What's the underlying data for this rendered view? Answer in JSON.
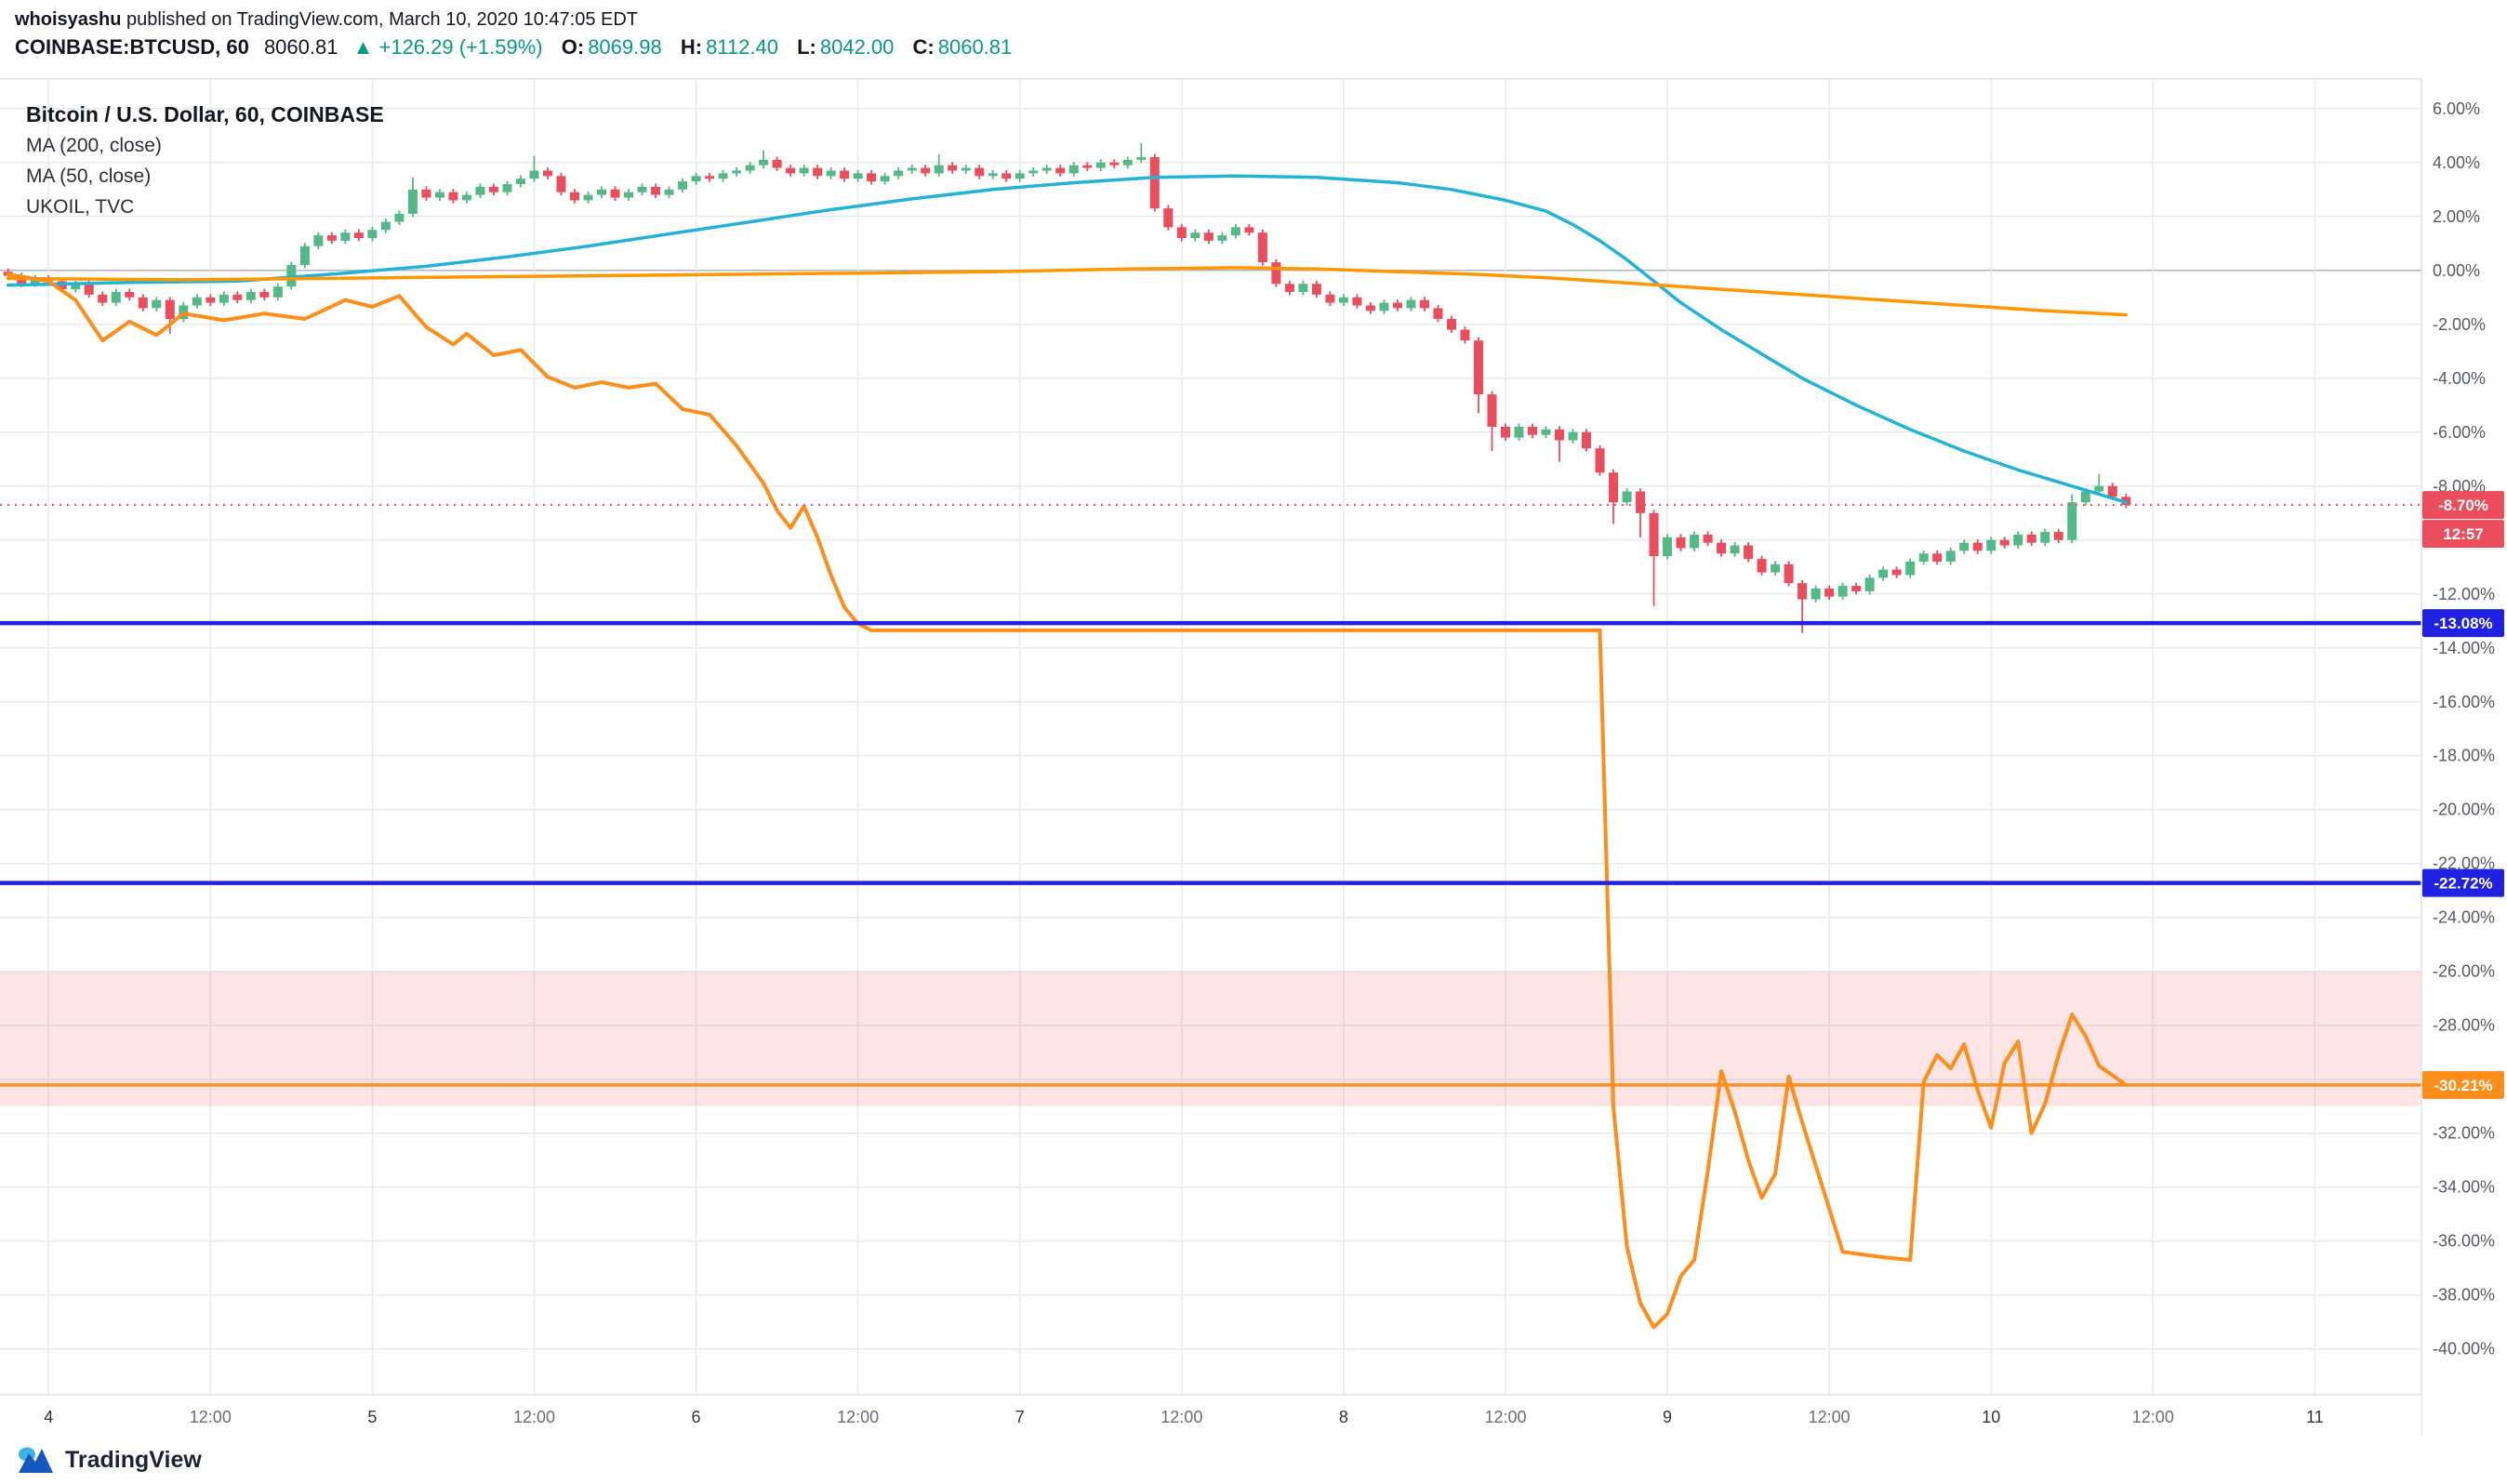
{
  "header": {
    "author": "whoisyashu",
    "published": " published on TradingView.com, March 10, 2020 10:47:05 EDT",
    "symbol": "COINBASE:BTCUSD, 60",
    "last": "8060.81",
    "change": "▲ +126.29 (+1.59%)",
    "o_label": "O:",
    "o_value": "8069.98",
    "h_label": "H:",
    "h_value": "8112.40",
    "l_label": "L:",
    "l_value": "8042.00",
    "c_label": "C:",
    "c_value": "8060.81"
  },
  "legend": {
    "title": "Bitcoin / U.S. Dollar, 60, COINBASE",
    "ma200": "MA (200, close)",
    "ma50": "MA (50, close)",
    "ukoil": "UKOIL, TVC"
  },
  "footer": {
    "brand": "TradingView"
  },
  "colors": {
    "up": "#53b987",
    "down": "#eb4d5c",
    "grid": "#e7eaee",
    "grid_zero": "#b2b6bd",
    "border": "#dfe2e8",
    "axis_text": "#555a64",
    "tick_day": "#30343c",
    "tick_time": "#686d78",
    "accent_green": "#089981",
    "blue": "#2021e2",
    "red": "#eb4d5c",
    "orange": "#ff8d1a"
  },
  "chart_data": {
    "type": "candlestick+line",
    "title": "Bitcoin / U.S. Dollar, 60, COINBASE (percent scale) with MA(200), MA(50) and UKOIL overlay",
    "x_unit": "hours since 2020-03-04 00:00",
    "xlim": [
      -3.6,
      175.9
    ],
    "ylim": [
      -41.7,
      7.131
    ],
    "y_ticks": [
      6,
      4,
      2,
      0,
      -2,
      -4,
      -6,
      -8,
      -10,
      -12,
      -14,
      -16,
      -18,
      -20,
      -22,
      -24,
      -26,
      -28,
      -30,
      -32,
      -34,
      -36,
      -38,
      -40
    ],
    "x_ticks": [
      [
        0,
        "4"
      ],
      [
        12,
        "12:00"
      ],
      [
        24,
        "5"
      ],
      [
        36,
        "12:00"
      ],
      [
        48,
        "6"
      ],
      [
        60,
        "12:00"
      ],
      [
        72,
        "7"
      ],
      [
        84,
        "12:00"
      ],
      [
        96,
        "8"
      ],
      [
        108,
        "12:00"
      ],
      [
        120,
        "9"
      ],
      [
        132,
        "12:00"
      ],
      [
        144,
        "10"
      ],
      [
        156,
        "12:00"
      ],
      [
        168,
        "11"
      ]
    ],
    "candles": {
      "t_start": -3,
      "wick_pad": 0.12,
      "closes": [
        -0.2,
        -0.5,
        -0.3,
        -0.4,
        -0.7,
        -0.5,
        -0.9,
        -1.2,
        -0.8,
        -1.0,
        -1.4,
        -1.1,
        -1.8,
        -1.3,
        -1.0,
        -1.2,
        -0.9,
        -1.1,
        -0.8,
        -1.0,
        -0.6,
        0.2,
        0.9,
        1.3,
        1.1,
        1.4,
        1.2,
        1.5,
        1.8,
        2.1,
        3.0,
        2.7,
        2.9,
        2.6,
        2.8,
        3.1,
        2.9,
        3.2,
        3.4,
        3.7,
        3.5,
        2.9,
        2.6,
        2.8,
        3.0,
        2.7,
        2.9,
        3.1,
        2.8,
        3.0,
        3.3,
        3.5,
        3.4,
        3.6,
        3.7,
        3.9,
        4.1,
        3.8,
        3.6,
        3.8,
        3.5,
        3.7,
        3.4,
        3.6,
        3.3,
        3.5,
        3.7,
        3.8,
        3.6,
        3.9,
        3.7,
        3.8,
        3.5,
        3.6,
        3.4,
        3.6,
        3.7,
        3.8,
        3.6,
        3.9,
        3.8,
        4.0,
        3.9,
        4.1,
        4.2,
        2.3,
        1.6,
        1.2,
        1.4,
        1.1,
        1.3,
        1.6,
        1.4,
        0.3,
        -0.5,
        -0.8,
        -0.5,
        -0.9,
        -1.2,
        -1.0,
        -1.3,
        -1.5,
        -1.2,
        -1.4,
        -1.1,
        -1.4,
        -1.8,
        -2.2,
        -2.6,
        -4.6,
        -5.8,
        -6.2,
        -5.8,
        -6.1,
        -5.9,
        -6.3,
        -6.0,
        -6.6,
        -7.5,
        -8.6,
        -8.2,
        -9.0,
        -10.6,
        -9.9,
        -10.3,
        -9.8,
        -10.1,
        -10.5,
        -10.2,
        -10.7,
        -11.2,
        -10.9,
        -11.6,
        -12.2,
        -11.8,
        -12.1,
        -11.7,
        -11.9,
        -11.4,
        -11.1,
        -11.3,
        -10.8,
        -10.5,
        -10.8,
        -10.4,
        -10.1,
        -10.4,
        -10.0,
        -10.2,
        -9.8,
        -10.1,
        -9.7,
        -10.0,
        -8.6,
        -8.2,
        -8.0,
        -8.4,
        -8.7
      ],
      "wick_overrides": {
        "12": {
          "l": -2.35
        },
        "30": {
          "h": 3.45
        },
        "39": {
          "h": 4.25
        },
        "56": {
          "h": 4.45
        },
        "69": {
          "h": 4.3
        },
        "84": {
          "h": 4.72
        },
        "109": {
          "l": -5.3
        },
        "110": {
          "l": -6.7
        },
        "115": {
          "l": -7.1
        },
        "119": {
          "l": -9.4
        },
        "121": {
          "l": -9.9
        },
        "122": {
          "l": -12.45
        },
        "133": {
          "l": -13.45
        },
        "153": {
          "h": -8.3
        },
        "155": {
          "h": -7.55
        }
      }
    },
    "series": [
      {
        "id": "ma200",
        "name": "MA (200, close)",
        "color": "#23b3d7",
        "width": 3.5,
        "points": [
          [
            -3,
            -0.55
          ],
          [
            6,
            -0.45
          ],
          [
            14,
            -0.4
          ],
          [
            22,
            -0.1
          ],
          [
            28,
            0.15
          ],
          [
            34,
            0.5
          ],
          [
            40,
            0.9
          ],
          [
            46,
            1.35
          ],
          [
            52,
            1.8
          ],
          [
            58,
            2.25
          ],
          [
            64,
            2.65
          ],
          [
            70,
            3.0
          ],
          [
            76,
            3.25
          ],
          [
            82,
            3.45
          ],
          [
            88,
            3.5
          ],
          [
            94,
            3.45
          ],
          [
            100,
            3.25
          ],
          [
            104,
            3.0
          ],
          [
            108,
            2.6
          ],
          [
            111,
            2.2
          ],
          [
            113,
            1.7
          ],
          [
            115,
            1.1
          ],
          [
            117,
            0.4
          ],
          [
            119,
            -0.4
          ],
          [
            121,
            -1.2
          ],
          [
            124,
            -2.2
          ],
          [
            127,
            -3.1
          ],
          [
            130,
            -4.0
          ],
          [
            134,
            -5.0
          ],
          [
            138,
            -5.9
          ],
          [
            142,
            -6.7
          ],
          [
            146,
            -7.4
          ],
          [
            150,
            -8.0
          ],
          [
            154,
            -8.6
          ]
        ]
      },
      {
        "id": "ma50",
        "name": "MA (50, close)",
        "color": "#ff9800",
        "width": 3.5,
        "points": [
          [
            -3,
            -0.3
          ],
          [
            10,
            -0.35
          ],
          [
            20,
            -0.3
          ],
          [
            30,
            -0.25
          ],
          [
            40,
            -0.2
          ],
          [
            50,
            -0.15
          ],
          [
            60,
            -0.1
          ],
          [
            70,
            -0.05
          ],
          [
            80,
            0.05
          ],
          [
            88,
            0.1
          ],
          [
            94,
            0.05
          ],
          [
            100,
            -0.05
          ],
          [
            106,
            -0.15
          ],
          [
            112,
            -0.3
          ],
          [
            118,
            -0.5
          ],
          [
            124,
            -0.7
          ],
          [
            130,
            -0.9
          ],
          [
            136,
            -1.1
          ],
          [
            142,
            -1.3
          ],
          [
            148,
            -1.5
          ],
          [
            154,
            -1.65
          ]
        ]
      },
      {
        "id": "ukoil",
        "name": "UKOIL, TVC",
        "color": "#ff8d1a",
        "width": 4,
        "points": [
          [
            -3,
            -0.15
          ],
          [
            0,
            -0.4
          ],
          [
            2,
            -1.1
          ],
          [
            4,
            -2.6
          ],
          [
            6,
            -1.9
          ],
          [
            8,
            -2.4
          ],
          [
            10,
            -1.6
          ],
          [
            13,
            -1.85
          ],
          [
            16,
            -1.6
          ],
          [
            19,
            -1.8
          ],
          [
            22,
            -1.1
          ],
          [
            24,
            -1.35
          ],
          [
            26,
            -0.95
          ],
          [
            28,
            -2.1
          ],
          [
            30,
            -2.75
          ],
          [
            31,
            -2.35
          ],
          [
            33,
            -3.15
          ],
          [
            35,
            -2.95
          ],
          [
            37,
            -3.95
          ],
          [
            39,
            -4.35
          ],
          [
            41,
            -4.15
          ],
          [
            43,
            -4.35
          ],
          [
            45,
            -4.2
          ],
          [
            47,
            -5.15
          ],
          [
            49,
            -5.35
          ],
          [
            51,
            -6.5
          ],
          [
            53,
            -7.9
          ],
          [
            54,
            -8.9
          ],
          [
            55,
            -9.55
          ],
          [
            56,
            -8.75
          ],
          [
            57,
            -9.9
          ],
          [
            58,
            -11.3
          ],
          [
            59,
            -12.5
          ],
          [
            60,
            -13.1
          ],
          [
            61,
            -13.35
          ],
          [
            115,
            -13.35
          ],
          [
            116,
            -31.0
          ],
          [
            117,
            -36.2
          ],
          [
            118,
            -38.3
          ],
          [
            119,
            -39.2
          ],
          [
            120,
            -38.7
          ],
          [
            121,
            -37.3
          ],
          [
            122,
            -36.7
          ],
          [
            123,
            -33.4
          ],
          [
            124,
            -29.7
          ],
          [
            125,
            -31.2
          ],
          [
            126,
            -33.0
          ],
          [
            127,
            -34.4
          ],
          [
            128,
            -33.5
          ],
          [
            129,
            -29.9
          ],
          [
            130,
            -31.6
          ],
          [
            131,
            -33.2
          ],
          [
            133,
            -36.4
          ],
          [
            136,
            -36.6
          ],
          [
            138,
            -36.7
          ],
          [
            139,
            -30.1
          ],
          [
            140,
            -29.1
          ],
          [
            141,
            -29.6
          ],
          [
            142,
            -28.7
          ],
          [
            143,
            -30.4
          ],
          [
            144,
            -31.8
          ],
          [
            145,
            -29.4
          ],
          [
            146,
            -28.6
          ],
          [
            147,
            -32.0
          ],
          [
            148,
            -30.9
          ],
          [
            149,
            -29.1
          ],
          [
            150,
            -27.6
          ],
          [
            151,
            -28.4
          ],
          [
            152,
            -29.5
          ],
          [
            154,
            -30.21
          ]
        ]
      }
    ],
    "hlines": [
      {
        "v": -8.7,
        "color": "#eb4d5c",
        "width": 2,
        "dash": "2 6",
        "label": "-8.70%",
        "label_bg": "#eb4d5c"
      },
      {
        "v": -13.08,
        "color": "#2021e2",
        "width": 4.5,
        "label": "-13.08%",
        "label_bg": "#2021e2"
      },
      {
        "v": -22.72,
        "color": "#2021e2",
        "width": 4.5,
        "label": "-22.72%",
        "label_bg": "#2021e2"
      },
      {
        "v": -30.21,
        "color": "#ff8d1a",
        "width": 3.5,
        "label": "-30.21%",
        "label_bg": "#ff8d1a"
      }
    ],
    "countdown": {
      "text": "12:57",
      "bg": "#eb4d5c",
      "anchor_v": -8.7
    },
    "band": {
      "top": -26.0,
      "bottom": -31.0,
      "fill": "rgba(244,84,95,0.16)"
    },
    "grid": "on",
    "legend_position": "top-left"
  }
}
